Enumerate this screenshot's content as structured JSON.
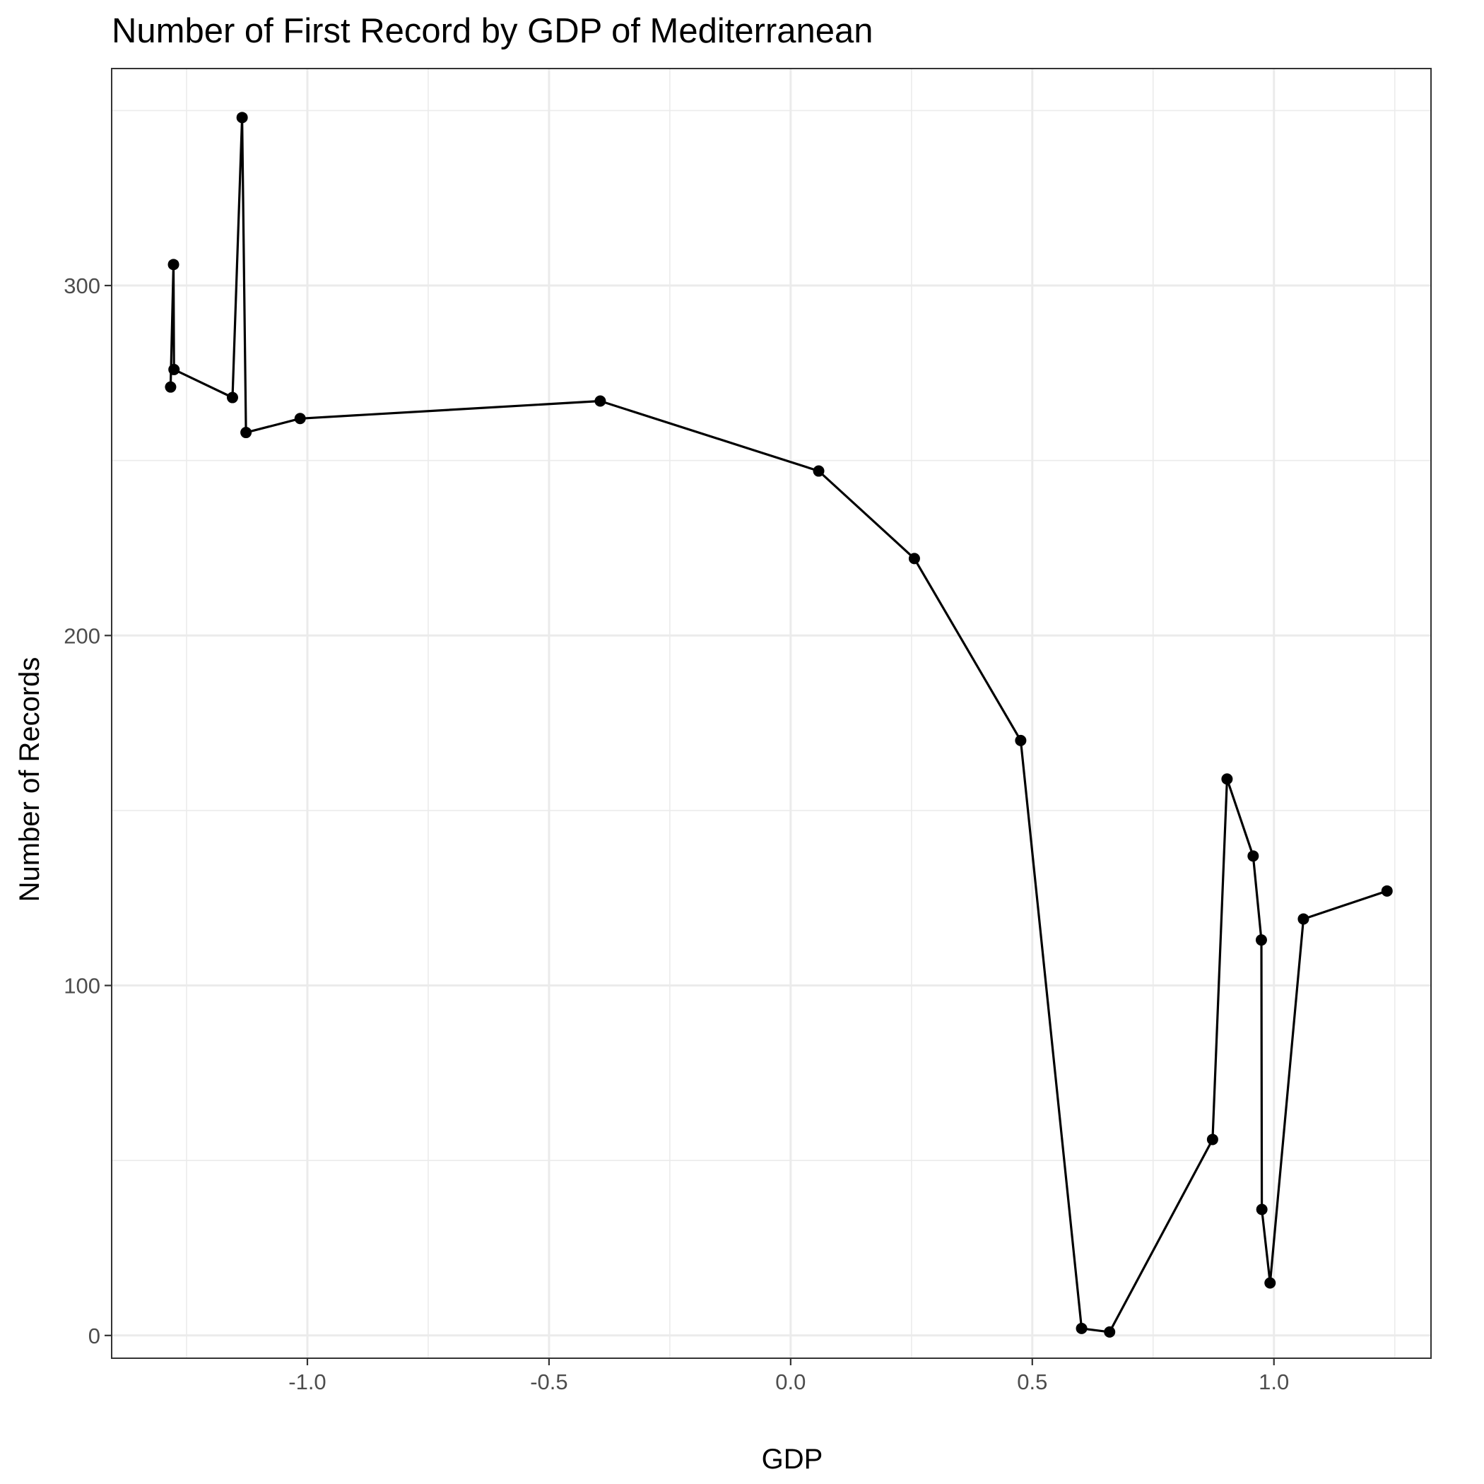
{
  "chart_data": {
    "type": "line",
    "title": "Number of First Record by GDP of Mediterranean",
    "xlabel": "GDP",
    "ylabel": "Number of Records",
    "xlim": [
      -1.405,
      1.325
    ],
    "ylim": [
      -6.5,
      362
    ],
    "x_ticks": [
      -1.0,
      -0.5,
      0.0,
      0.5,
      1.0
    ],
    "x_tick_labels": [
      "-1.0",
      "-0.5",
      "0.0",
      "0.5",
      "1.0"
    ],
    "y_ticks": [
      0,
      100,
      200,
      300
    ],
    "y_tick_labels": [
      "0",
      "100",
      "200",
      "300"
    ],
    "x_minor_ticks": [
      -1.25,
      -0.75,
      -0.25,
      0.25,
      0.75,
      1.25
    ],
    "y_minor_ticks": [
      50,
      150,
      250,
      350
    ],
    "grid": true,
    "legend": "none",
    "line_color": "#000000",
    "series": [
      {
        "x": [
          -1.283,
          -1.277,
          -1.276,
          -1.155,
          -1.135,
          -1.127,
          -1.015,
          -0.394,
          0.058,
          0.256,
          0.476,
          0.602,
          0.66,
          0.873,
          0.903,
          0.957,
          0.974,
          0.975,
          0.992,
          1.061,
          1.234
        ],
        "y": [
          271,
          306,
          276,
          268,
          348,
          258,
          262,
          267,
          247,
          222,
          170,
          2,
          1,
          56,
          159,
          137,
          113,
          36,
          15,
          119,
          127
        ]
      }
    ]
  }
}
